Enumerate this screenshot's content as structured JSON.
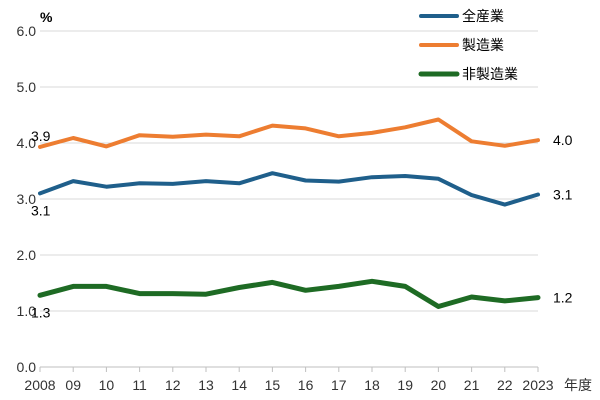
{
  "chart_data": {
    "type": "line",
    "ylabel": "%",
    "xlabel": "年度",
    "ylim": [
      0,
      6
    ],
    "yticks": [
      "0.0",
      "1.0",
      "2.0",
      "3.0",
      "4.0",
      "5.0",
      "6.0"
    ],
    "categories": [
      "2008",
      "09",
      "10",
      "11",
      "12",
      "13",
      "14",
      "15",
      "16",
      "17",
      "18",
      "19",
      "20",
      "21",
      "22",
      "2023"
    ],
    "grid": true,
    "legend_position": "top-right",
    "series": [
      {
        "name": "全産業",
        "color": "#1f5f8b",
        "values": [
          3.1,
          3.32,
          3.22,
          3.28,
          3.27,
          3.32,
          3.28,
          3.46,
          3.33,
          3.31,
          3.39,
          3.41,
          3.36,
          3.07,
          2.9,
          3.08
        ],
        "start_label": "3.1",
        "end_label": "3.1"
      },
      {
        "name": "製造業",
        "color": "#ed7d31",
        "values": [
          3.93,
          4.09,
          3.94,
          4.14,
          4.11,
          4.15,
          4.12,
          4.31,
          4.26,
          4.12,
          4.18,
          4.28,
          4.42,
          4.03,
          3.95,
          4.05
        ],
        "start_label": "3.9",
        "end_label": "4.0"
      },
      {
        "name": "非製造業",
        "color": "#1e6b24",
        "values": [
          1.28,
          1.44,
          1.44,
          1.31,
          1.31,
          1.3,
          1.42,
          1.51,
          1.37,
          1.44,
          1.53,
          1.44,
          1.08,
          1.25,
          1.18,
          1.24
        ],
        "start_label": "1.3",
        "end_label": "1.2"
      }
    ]
  }
}
